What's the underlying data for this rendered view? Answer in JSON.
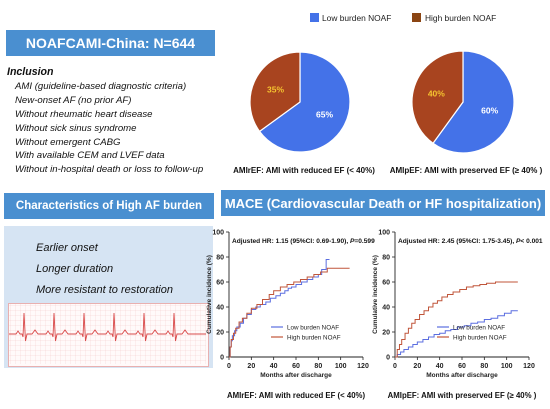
{
  "title": "NOAFCAMI-China: N=644",
  "inclusion": {
    "heading": "Inclusion",
    "items": [
      "AMI (guideline-based diagnostic criteria)",
      "New-onset AF (no prior AF)",
      "Without rheumatic heart disease",
      "Without sick sinus syndrome",
      "Without emergent CABG",
      "With available CEM and LVEF data",
      "Without in-hospital death or loss to follow-up"
    ]
  },
  "characteristics": {
    "heading": "Characteristics of High AF burden",
    "items": [
      "Earlier onset",
      "Longer duration",
      "More resistant to restoration"
    ]
  },
  "mace_heading": "MACE (Cardiovascular Death or HF hospitalization)",
  "colors": {
    "banner": "#4a8fd0",
    "low": "#4472e8",
    "high": "#a8441f",
    "low_km": "#5b6ee0",
    "high_km": "#c0553a"
  },
  "chart_data": [
    {
      "type": "pie",
      "legend": [
        "Low burden NOAF",
        "High burden NOAF"
      ],
      "legend_placement": "top",
      "slices": [
        {
          "name": "Low burden NOAF",
          "value": 65,
          "label": "65%"
        },
        {
          "name": "High burden NOAF",
          "value": 35,
          "label": "35%"
        }
      ],
      "caption": "AMIrEF: AMI with reduced EF (< 40%)"
    },
    {
      "type": "pie",
      "slices": [
        {
          "name": "Low burden NOAF",
          "value": 60,
          "label": "60%"
        },
        {
          "name": "High burden NOAF",
          "value": 40,
          "label": "40%"
        }
      ],
      "caption": "AMIpEF: AMI with preserved EF (≥ 40% )"
    },
    {
      "type": "line",
      "annotation": {
        "prefix": "Adjusted HR: 1.15 (95%CI: 0.69-1.90), ",
        "p_letter": "P",
        "p_value": "=0.599"
      },
      "xlabel": "Months after discharge",
      "ylabel": "Cumulative incidence (%)",
      "xlim": [
        0,
        120
      ],
      "ylim": [
        0,
        100
      ],
      "xticks": [
        "0",
        "20",
        "40",
        "60",
        "80",
        "100",
        "120"
      ],
      "yticks": [
        "0",
        "20",
        "40",
        "60",
        "80",
        "100"
      ],
      "caption": "AMIrEF: AMI with reduced EF (< 40%)",
      "series": [
        {
          "name": "Low burden NOAF",
          "x": [
            0,
            1,
            2,
            3,
            5,
            7,
            10,
            13,
            16,
            20,
            24,
            28,
            33,
            37,
            42,
            46,
            50,
            53,
            56,
            60,
            65,
            70,
            75,
            80,
            83,
            87,
            90
          ],
          "y": [
            0,
            8,
            13,
            17,
            21,
            24,
            27,
            31,
            34,
            38,
            40,
            42,
            44,
            47,
            49,
            51,
            53,
            55,
            56,
            58,
            60,
            62,
            64,
            66,
            70,
            78,
            78
          ]
        },
        {
          "name": "High burden NOAF",
          "x": [
            0,
            1,
            2,
            4,
            6,
            9,
            12,
            16,
            20,
            25,
            30,
            36,
            40,
            46,
            52,
            58,
            64,
            70,
            76,
            82,
            88,
            96,
            108
          ],
          "y": [
            0,
            8,
            14,
            19,
            23,
            28,
            31,
            35,
            39,
            42,
            46,
            50,
            53,
            56,
            58,
            60,
            62,
            64,
            66,
            68,
            71,
            71,
            71
          ]
        }
      ]
    },
    {
      "type": "line",
      "annotation": {
        "prefix": "Adjusted HR: 2.45 (95%CI: 1.75-3.45), ",
        "p_letter": "P",
        "p_value": "< 0.001"
      },
      "xlabel": "Months after discharge",
      "ylabel": "Cumulative incidence (%)",
      "xlim": [
        0,
        120
      ],
      "ylim": [
        0,
        100
      ],
      "xticks": [
        "0",
        "20",
        "40",
        "60",
        "80",
        "100",
        "120"
      ],
      "yticks": [
        "0",
        "20",
        "40",
        "60",
        "80",
        "100"
      ],
      "caption": "AMIpEF: AMI with preserved EF (≥ 40% )",
      "series": [
        {
          "name": "Low burden NOAF",
          "x": [
            0,
            2,
            5,
            8,
            12,
            16,
            20,
            25,
            30,
            35,
            40,
            45,
            50,
            56,
            62,
            68,
            74,
            80,
            86,
            92,
            98,
            104,
            110
          ],
          "y": [
            0,
            2,
            4,
            6,
            8,
            10,
            12,
            14,
            16,
            18,
            19,
            21,
            22,
            24,
            25,
            27,
            28,
            30,
            31,
            33,
            35,
            37,
            37
          ]
        },
        {
          "name": "High burden NOAF",
          "x": [
            0,
            2,
            4,
            6,
            9,
            12,
            15,
            18,
            22,
            26,
            30,
            34,
            38,
            42,
            47,
            52,
            58,
            64,
            70,
            76,
            82,
            90,
            110
          ],
          "y": [
            0,
            6,
            10,
            14,
            19,
            23,
            27,
            30,
            34,
            37,
            40,
            43,
            45,
            48,
            50,
            52,
            54,
            56,
            57,
            58,
            59,
            60,
            60
          ]
        }
      ]
    }
  ]
}
